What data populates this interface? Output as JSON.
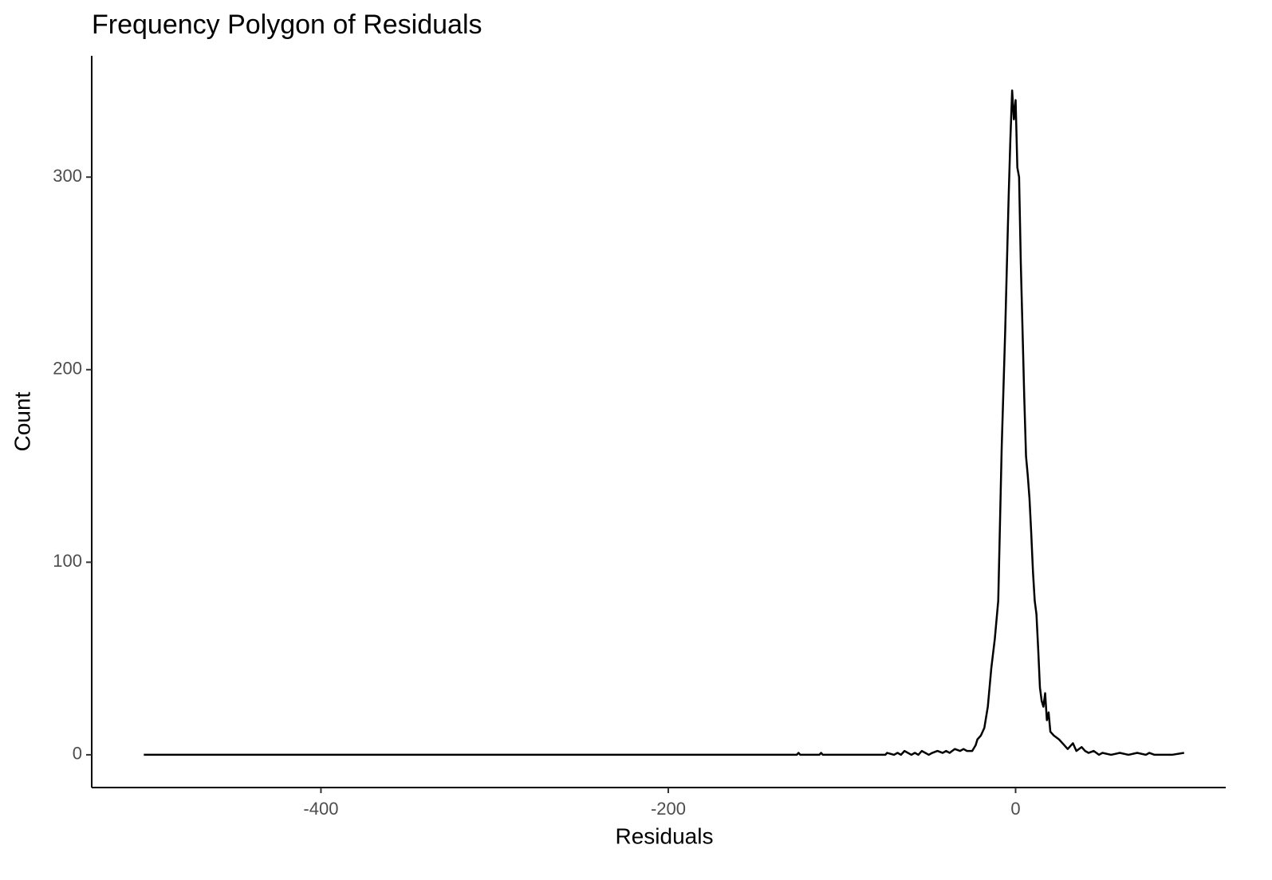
{
  "chart_data": {
    "type": "line",
    "title": "Frequency Polygon of Residuals",
    "x_label": "Residuals",
    "y_label": "Count",
    "color": "#000000",
    "x": [
      -502,
      -126,
      -125,
      -124,
      -113,
      -112,
      -111,
      -75,
      -74,
      -70,
      -68,
      -66,
      -64,
      -60,
      -58,
      -56,
      -54,
      -50,
      -48,
      -45,
      -42,
      -40,
      -38,
      -35,
      -32,
      -30,
      -28,
      -25,
      -23,
      -22,
      -20,
      -18,
      -16,
      -14,
      -12,
      -10,
      -9,
      -8,
      -6,
      -4,
      -3,
      -2,
      -1,
      0,
      1,
      2,
      3,
      4,
      5,
      6,
      7,
      8,
      9,
      10,
      11,
      12,
      13,
      14,
      15,
      16,
      17,
      18,
      19,
      20,
      22,
      25,
      28,
      30,
      33,
      35,
      38,
      40,
      42,
      45,
      48,
      50,
      55,
      60,
      65,
      70,
      75,
      77,
      80,
      90,
      97
    ],
    "values": [
      0,
      0,
      1,
      0,
      0,
      1,
      0,
      0,
      1,
      0,
      1,
      0,
      2,
      0,
      1,
      0,
      2,
      0,
      1,
      2,
      1,
      2,
      1,
      3,
      2,
      3,
      2,
      2,
      5,
      8,
      10,
      14,
      25,
      45,
      60,
      80,
      120,
      160,
      220,
      290,
      320,
      345,
      330,
      340,
      305,
      300,
      255,
      220,
      185,
      155,
      145,
      133,
      115,
      95,
      80,
      73,
      55,
      35,
      28,
      25,
      32,
      18,
      22,
      12,
      10,
      8,
      5,
      3,
      6,
      2,
      4,
      2,
      1,
      2,
      0,
      1,
      0,
      1,
      0,
      1,
      0,
      1,
      0,
      0,
      1
    ],
    "xlim": [
      -532,
      121
    ],
    "ylim": [
      -17,
      363
    ],
    "xticks": [
      -400,
      -200,
      0
    ],
    "yticks": [
      0,
      100,
      200,
      300
    ],
    "grid": false
  }
}
